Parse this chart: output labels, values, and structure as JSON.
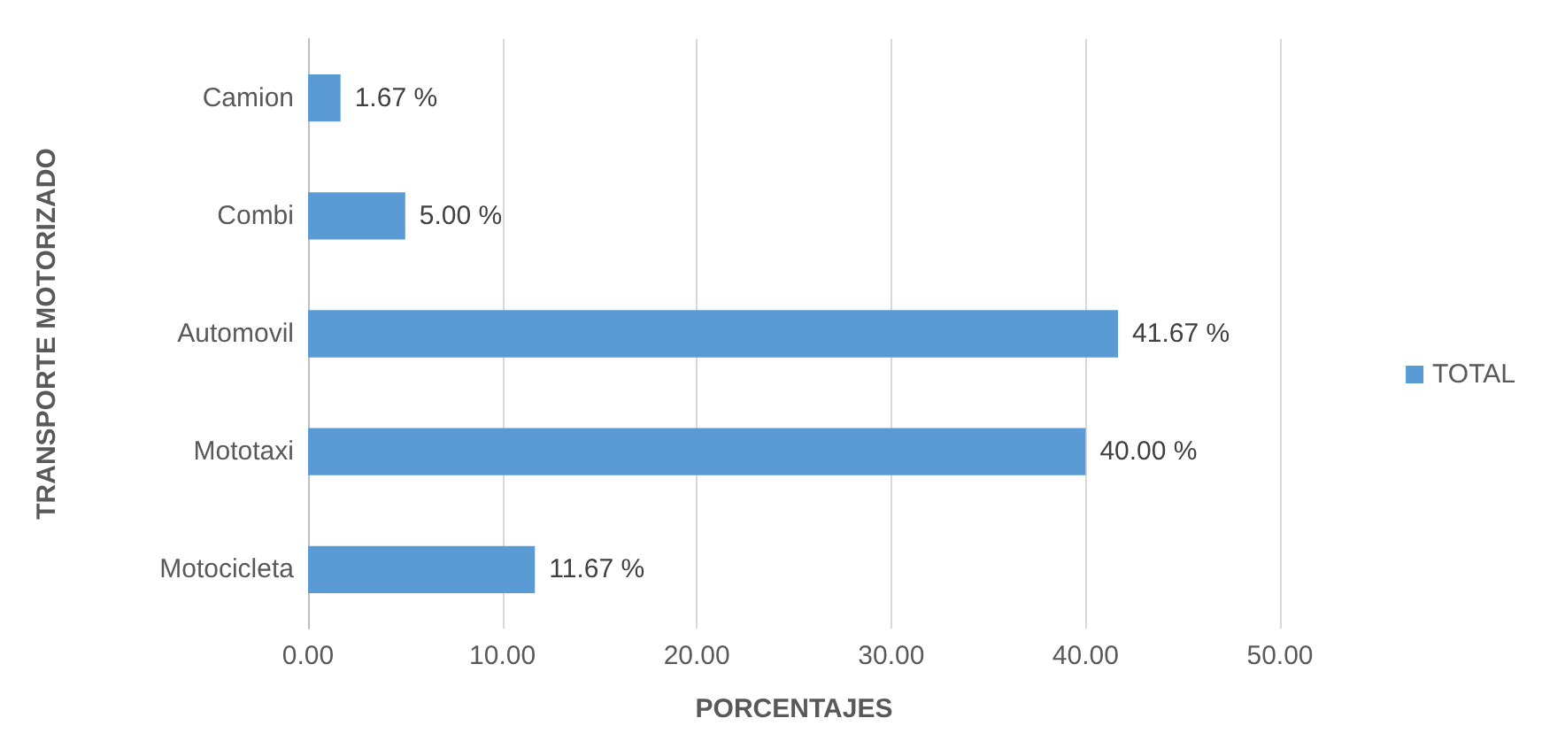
{
  "chart_data": {
    "type": "bar",
    "orientation": "horizontal",
    "xlabel": "PORCENTAJES",
    "ylabel": "TRANSPORTE MOTORIZADO",
    "categories": [
      "Camion",
      "Combi",
      "Automovil",
      "Mototaxi",
      "Motocicleta"
    ],
    "series": [
      {
        "name": "TOTAL",
        "color": "#5b9bd5",
        "values": [
          1.67,
          5.0,
          41.67,
          40.0,
          11.67
        ],
        "value_labels": [
          "1.67 %",
          "5.00 %",
          "41.67 %",
          "40.00 %",
          "11.67 %"
        ]
      }
    ],
    "xlim": [
      0,
      50
    ],
    "xticks": [
      {
        "value": 0,
        "label": "0.00"
      },
      {
        "value": 10,
        "label": "10.00"
      },
      {
        "value": 20,
        "label": "20.00"
      },
      {
        "value": 30,
        "label": "30.00"
      },
      {
        "value": 40,
        "label": "40.00"
      },
      {
        "value": 50,
        "label": "50.00"
      }
    ],
    "grid": "x",
    "legend": "right"
  }
}
